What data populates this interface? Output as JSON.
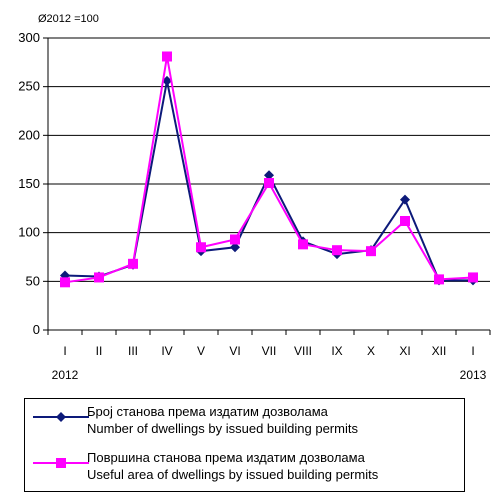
{
  "chart_data": {
    "type": "line",
    "note": "Ø2012 =100",
    "ylim": [
      0,
      300
    ],
    "yticks": [
      0,
      50,
      100,
      150,
      200,
      250,
      300
    ],
    "grid": "horizontal",
    "categories": [
      "I",
      "II",
      "III",
      "IV",
      "V",
      "VI",
      "VII",
      "VIII",
      "IX",
      "X",
      "XI",
      "XII",
      "I"
    ],
    "year_labels": [
      {
        "category_index": 0,
        "text": "2012"
      },
      {
        "category_index": 12,
        "text": "2013"
      }
    ],
    "series": [
      {
        "name_line1": "Број станова према издатим дозволама",
        "name_line2": "Number of dwellings by issued building permits",
        "color": "#0d1a7a",
        "marker": "diamond",
        "values": [
          56,
          55,
          67,
          256,
          81,
          85,
          159,
          91,
          78,
          82,
          134,
          51,
          51
        ]
      },
      {
        "name_line1": "Површина станова према издатим дозволама",
        "name_line2": "Useful area of dwellings by issued building permits",
        "color": "#ff00ff",
        "marker": "square",
        "values": [
          49,
          54,
          68,
          281,
          85,
          93,
          151,
          88,
          82,
          81,
          112,
          52,
          54
        ]
      }
    ]
  }
}
